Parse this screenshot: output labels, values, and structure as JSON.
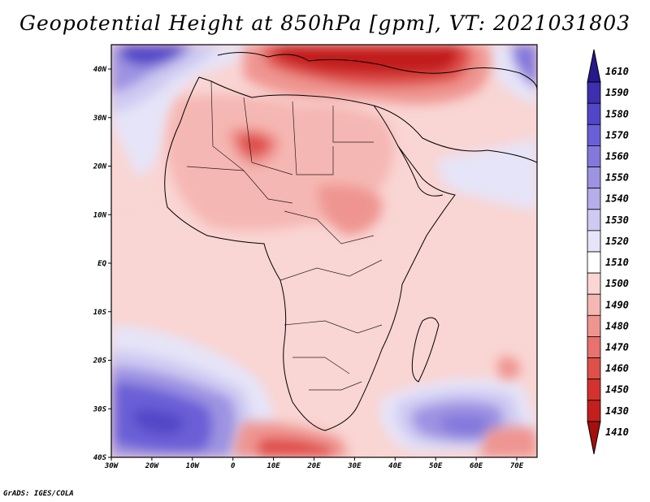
{
  "title": "Geopotential Height at 850hPa [gpm], VT: 2021031803",
  "credit": "GrADS: IGES/COLA",
  "lat_labels": [
    "40N",
    "30N",
    "20N",
    "10N",
    "EQ",
    "10S",
    "20S",
    "30S",
    "40S"
  ],
  "lon_labels": [
    "30W",
    "20W",
    "10W",
    "0",
    "10E",
    "20E",
    "30E",
    "40E",
    "50E",
    "60E",
    "70E"
  ],
  "colorbar": {
    "labels": [
      "1610",
      "1590",
      "1580",
      "1570",
      "1560",
      "1550",
      "1540",
      "1530",
      "1520",
      "1510",
      "1500",
      "1490",
      "1480",
      "1470",
      "1460",
      "1450",
      "1430",
      "1410"
    ],
    "colors": [
      "#26198c",
      "#3d2fae",
      "#5246c8",
      "#6a5fd6",
      "#8478dc",
      "#9d93e2",
      "#b6aeea",
      "#cfcaf2",
      "#e6e4f8",
      "#ffffff",
      "#f9d5d3",
      "#f5b7b3",
      "#ef9591",
      "#e8726d",
      "#df504b",
      "#d3322f",
      "#c21f1d",
      "#a50f0f"
    ]
  },
  "map_data": {
    "extent": {
      "lon_min": -30,
      "lon_max": 75,
      "lat_min": -40,
      "lat_max": 45
    },
    "field": "Geopotential Height at 850hPa",
    "units": "gpm",
    "valid_time": "2021031803"
  }
}
